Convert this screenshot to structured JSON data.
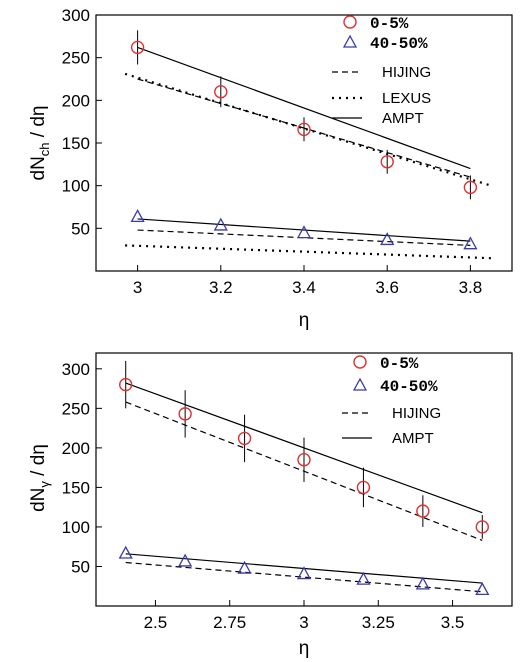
{
  "chart_data": [
    {
      "type": "scatter",
      "ylabel": "dN",
      "ylabel_sub": "ch",
      "ylabel_tail": " / dη",
      "xlabel": "η",
      "xlim": [
        2.9,
        3.9
      ],
      "ylim": [
        0,
        300
      ],
      "xticks": [
        "3",
        "3.2",
        "3.4",
        "3.6",
        "3.8"
      ],
      "xtick_values": [
        3.0,
        3.2,
        3.4,
        3.6,
        3.8
      ],
      "yticks": [
        "50",
        "100",
        "150",
        "200",
        "250",
        "300"
      ],
      "ytick_values": [
        50,
        100,
        150,
        200,
        250,
        300
      ],
      "legend_position": "top-right",
      "series": [
        {
          "name": "0-5%",
          "marker": "circle",
          "color": "#e03030",
          "x": [
            3.0,
            3.2,
            3.4,
            3.6,
            3.8
          ],
          "y": [
            262,
            210,
            166,
            128,
            98
          ],
          "err": [
            20,
            18,
            14,
            14,
            14
          ]
        },
        {
          "name": "40-50%",
          "marker": "triangle",
          "color": "#3a3aa8",
          "x": [
            3.0,
            3.2,
            3.4,
            3.6,
            3.8
          ],
          "y": [
            64,
            54,
            45,
            37,
            32
          ],
          "err": [
            0,
            0,
            0,
            0,
            0
          ]
        }
      ],
      "lines": [
        {
          "name": "HIJING",
          "style": "dashed",
          "x": [
            3.0,
            3.8
          ],
          "y": [
            225,
            110
          ]
        },
        {
          "name": "",
          "style": "dashed",
          "x": [
            3.0,
            3.8
          ],
          "y": [
            48,
            30
          ]
        },
        {
          "name": "LEXUS",
          "style": "dotted",
          "x": [
            2.97,
            3.85
          ],
          "y": [
            231,
            100
          ]
        },
        {
          "name": "",
          "style": "dotted",
          "x": [
            2.97,
            3.85
          ],
          "y": [
            30,
            15
          ]
        },
        {
          "name": "AMPT",
          "style": "solid",
          "x": [
            3.0,
            3.8
          ],
          "y": [
            262,
            120
          ]
        },
        {
          "name": "",
          "style": "solid",
          "x": [
            3.0,
            3.8
          ],
          "y": [
            61,
            35
          ]
        }
      ]
    },
    {
      "type": "scatter",
      "ylabel": "dN",
      "ylabel_sub": "γ",
      "ylabel_tail": " / dη",
      "xlabel": "η",
      "xlim": [
        2.3,
        3.7
      ],
      "ylim": [
        0,
        320
      ],
      "xticks": [
        "2.5",
        "2.75",
        "3",
        "3.25",
        "3.5"
      ],
      "xtick_values": [
        2.5,
        2.75,
        3.0,
        3.25,
        3.5
      ],
      "yticks": [
        "50",
        "100",
        "150",
        "200",
        "250",
        "300"
      ],
      "ytick_values": [
        50,
        100,
        150,
        200,
        250,
        300
      ],
      "legend_position": "top-right",
      "series": [
        {
          "name": "0-5%",
          "marker": "circle",
          "color": "#e03030",
          "x": [
            2.4,
            2.6,
            2.8,
            3.0,
            3.2,
            3.4,
            3.6
          ],
          "y": [
            280,
            243,
            212,
            185,
            150,
            120,
            100
          ],
          "err": [
            30,
            30,
            30,
            28,
            25,
            20,
            15
          ]
        },
        {
          "name": "40-50%",
          "marker": "triangle",
          "color": "#3a3aa8",
          "x": [
            2.4,
            2.6,
            2.8,
            3.0,
            3.2,
            3.4,
            3.6
          ],
          "y": [
            67,
            57,
            48,
            41,
            34,
            28,
            21
          ],
          "err": [
            0,
            0,
            0,
            0,
            0,
            0,
            0
          ]
        }
      ],
      "lines": [
        {
          "name": "HIJING",
          "style": "dashed",
          "x": [
            2.4,
            3.6
          ],
          "y": [
            258,
            83
          ]
        },
        {
          "name": "",
          "style": "dashed",
          "x": [
            2.4,
            3.6
          ],
          "y": [
            55,
            18
          ]
        },
        {
          "name": "AMPT",
          "style": "solid",
          "x": [
            2.4,
            3.6
          ],
          "y": [
            282,
            118
          ]
        },
        {
          "name": "",
          "style": "solid",
          "x": [
            2.4,
            3.6
          ],
          "y": [
            66,
            29
          ]
        }
      ]
    }
  ]
}
